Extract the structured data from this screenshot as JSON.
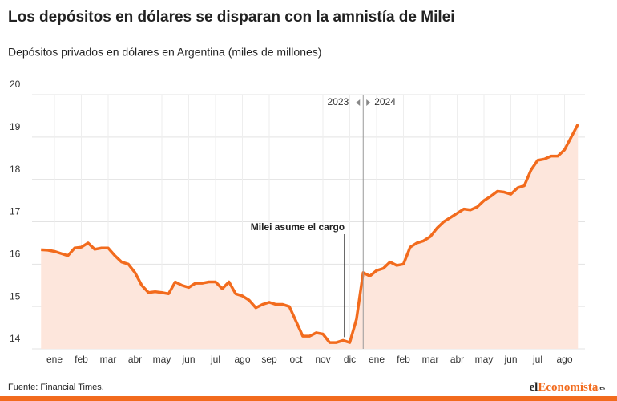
{
  "chart_data": {
    "type": "line",
    "title": "Los depósitos en dólares se disparan con la amnistía de Milei",
    "subtitle": "Depósitos privados en dólares en Argentina (miles de millones)",
    "categories": [
      null,
      null,
      "ene",
      null,
      null,
      null,
      "feb",
      null,
      null,
      null,
      "mar",
      null,
      null,
      null,
      "abr",
      null,
      null,
      null,
      "may",
      null,
      null,
      null,
      "jun",
      null,
      null,
      null,
      "jul",
      null,
      null,
      null,
      "ago",
      null,
      null,
      null,
      "sep",
      null,
      null,
      null,
      "oct",
      null,
      null,
      null,
      "nov",
      null,
      null,
      null,
      "dic",
      null,
      null,
      null,
      "ene",
      null,
      null,
      null,
      "feb",
      null,
      null,
      null,
      "mar",
      null,
      null,
      null,
      "abr",
      null,
      null,
      null,
      "may",
      null,
      null,
      null,
      "jun",
      null,
      null,
      null,
      "jul",
      null,
      null,
      null,
      "ago",
      null,
      null
    ],
    "series": [
      {
        "name": "Depósitos privados en dólares",
        "color": "#f26b1d",
        "fill": "#fde6dc",
        "values": [
          16.34,
          16.33,
          16.3,
          16.25,
          16.2,
          16.38,
          16.4,
          16.5,
          16.35,
          16.38,
          16.38,
          16.2,
          16.05,
          16.0,
          15.8,
          15.5,
          15.33,
          15.35,
          15.33,
          15.3,
          15.58,
          15.5,
          15.45,
          15.55,
          15.55,
          15.58,
          15.58,
          15.42,
          15.58,
          15.3,
          15.25,
          15.15,
          14.97,
          15.05,
          15.1,
          15.05,
          15.05,
          15.0,
          14.65,
          14.3,
          14.3,
          14.38,
          14.35,
          14.15,
          14.15,
          14.2,
          14.15,
          14.7,
          15.8,
          15.72,
          15.85,
          15.9,
          16.05,
          15.97,
          16.0,
          16.4,
          16.5,
          16.55,
          16.65,
          16.85,
          17.0,
          17.1,
          17.2,
          17.3,
          17.28,
          17.35,
          17.5,
          17.6,
          17.72,
          17.7,
          17.65,
          17.8,
          17.85,
          18.22,
          18.45,
          18.48,
          18.55,
          18.55,
          18.7,
          19.0,
          19.3
        ]
      }
    ],
    "ylim": [
      14,
      20
    ],
    "yticks": [
      14,
      15,
      16,
      17,
      18,
      19,
      20
    ],
    "grid": true,
    "annotation": {
      "text": "Milei asume el cargo",
      "index": 45
    },
    "divider": {
      "index": 48,
      "left": "2023",
      "right": "2024"
    },
    "source": "Fuente: Financial Times.",
    "logo": {
      "a": "el",
      "b": "Economista",
      "c": ".es"
    }
  }
}
